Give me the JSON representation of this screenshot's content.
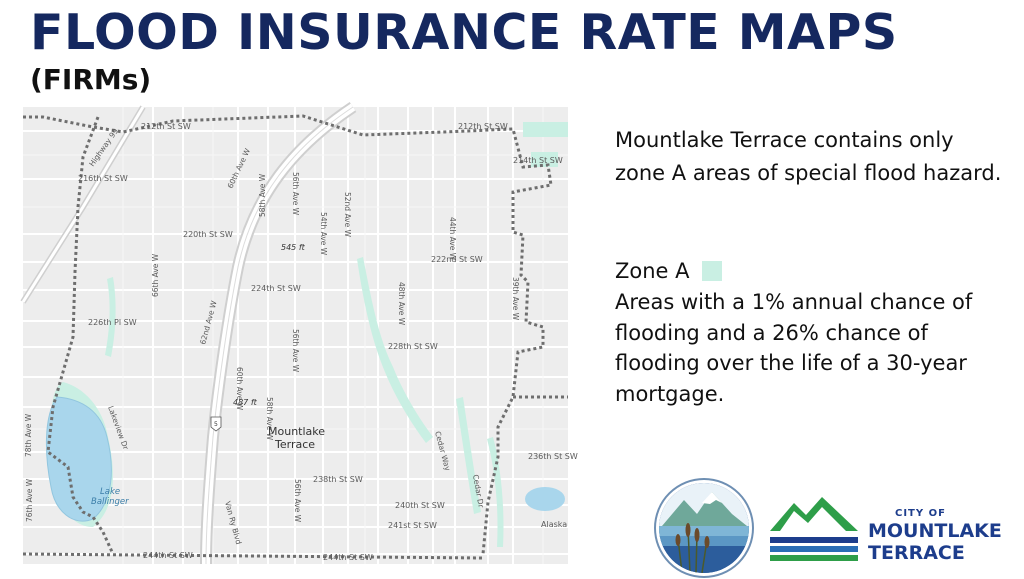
{
  "slide": {
    "title": "FLOOD INSURANCE RATE MAPS",
    "subtitle": "(FIRMs)"
  },
  "description": "Mountlake Terrace contains only zone A areas of special flood hazard.",
  "zone": {
    "label": "Zone A",
    "swatch_color": "#c9efe3",
    "description": "Areas with a 1% annual chance of flooding and a 26% chance of flooding over the life of a 30-year mortgage."
  },
  "map": {
    "city_label_1": "Mountlake",
    "city_label_2": "Terrace",
    "lake_label_1": "Lake",
    "lake_label_2": "Ballinger",
    "streets": {
      "s212": "212th St SW",
      "s214": "214th St SW",
      "s216": "216th St SW",
      "s220": "220th St SW",
      "s222": "222nd St SW",
      "s224": "224th St SW",
      "s226": "226th Pl SW",
      "s228": "228th St SW",
      "s236": "236th St SW",
      "s238": "238th St SW",
      "s240": "240th St SW",
      "s241": "241st St SW",
      "s244a": "244th St SW",
      "s244b": "244th St SW",
      "hwy99": "Highway 99",
      "ave66": "66th Ave W",
      "ave60": "60th Ave W",
      "ave62": "62nd Ave W",
      "ave58a": "58th Ave W",
      "ave58b": "58th Ave W",
      "ave56a": "56th Ave W",
      "ave56b": "56th Ave W",
      "ave56c": "56th Ave W",
      "ave54": "54th Ave W",
      "ave52": "52nd Ave W",
      "ave48": "48th Ave W",
      "ave44": "44th Ave W",
      "ave39": "39th Ave W",
      "ave76": "76th Ave W",
      "ave78": "78th Ave W",
      "lakeview": "Lakeview Dr",
      "cedar_way": "Cedar Way",
      "cedar_dr": "Cedar Dr",
      "vanry": "Van Ry Blvd",
      "alaska": "Alaska",
      "i5": "5",
      "elev1": "545 ft",
      "elev2": "487 ft"
    }
  },
  "logo": {
    "city_of": "CITY OF",
    "name_line1": "MOUNTLAKE",
    "name_line2": "TERRACE",
    "brand_blue": "#1d3d8c",
    "brand_green": "#2e9e49"
  }
}
